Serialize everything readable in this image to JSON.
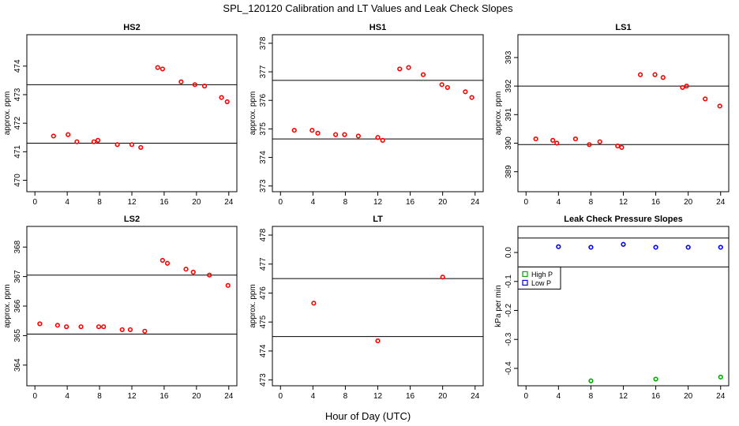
{
  "figure": {
    "title": "SPL_120120  Calibration and LT Values and Leak Check Slopes",
    "xlabel": "Hour of Day (UTC)"
  },
  "colors": {
    "cal": "#ff0000",
    "high": "#00aa00",
    "low": "#0000ff",
    "line": "#000000"
  },
  "chart_data": [
    {
      "type": "scatter",
      "title": "HS2",
      "ylabel": "approx. ppm",
      "xlim": [
        -1,
        25
      ],
      "ylim": [
        469.6,
        475.1
      ],
      "xticks": [
        0,
        4,
        8,
        12,
        16,
        20,
        24
      ],
      "yticks": [
        470,
        471,
        472,
        473,
        474
      ],
      "hlines": [
        471.3,
        473.35
      ],
      "points": [
        {
          "x": 2.3,
          "y": 471.55
        },
        {
          "x": 4.1,
          "y": 471.6
        },
        {
          "x": 5.2,
          "y": 471.35
        },
        {
          "x": 7.3,
          "y": 471.35
        },
        {
          "x": 7.8,
          "y": 471.4
        },
        {
          "x": 10.2,
          "y": 471.25
        },
        {
          "x": 12.0,
          "y": 471.25
        },
        {
          "x": 13.1,
          "y": 471.15
        },
        {
          "x": 15.2,
          "y": 473.95
        },
        {
          "x": 15.8,
          "y": 473.9
        },
        {
          "x": 18.1,
          "y": 473.45
        },
        {
          "x": 19.8,
          "y": 473.35
        },
        {
          "x": 21.0,
          "y": 473.3
        },
        {
          "x": 23.1,
          "y": 472.9
        },
        {
          "x": 23.8,
          "y": 472.75
        }
      ]
    },
    {
      "type": "scatter",
      "title": "HS1",
      "ylabel": "approx. ppm",
      "xlim": [
        -1,
        25
      ],
      "ylim": [
        372.8,
        378.3
      ],
      "xticks": [
        0,
        4,
        8,
        12,
        16,
        20,
        24
      ],
      "yticks": [
        373,
        374,
        375,
        376,
        377,
        378
      ],
      "hlines": [
        374.65,
        376.7
      ],
      "points": [
        {
          "x": 1.7,
          "y": 374.95
        },
        {
          "x": 3.9,
          "y": 374.95
        },
        {
          "x": 4.6,
          "y": 374.85
        },
        {
          "x": 6.8,
          "y": 374.8
        },
        {
          "x": 7.9,
          "y": 374.8
        },
        {
          "x": 9.6,
          "y": 374.75
        },
        {
          "x": 12.0,
          "y": 374.7
        },
        {
          "x": 12.6,
          "y": 374.6
        },
        {
          "x": 14.7,
          "y": 377.1
        },
        {
          "x": 15.8,
          "y": 377.15
        },
        {
          "x": 17.6,
          "y": 376.9
        },
        {
          "x": 19.9,
          "y": 376.55
        },
        {
          "x": 20.6,
          "y": 376.45
        },
        {
          "x": 22.8,
          "y": 376.3
        },
        {
          "x": 23.6,
          "y": 376.1
        }
      ]
    },
    {
      "type": "scatter",
      "title": "LS1",
      "ylabel": "approx. ppm",
      "xlim": [
        -1,
        25
      ],
      "ylim": [
        388.3,
        393.8
      ],
      "xticks": [
        0,
        4,
        8,
        12,
        16,
        20,
        24
      ],
      "yticks": [
        389,
        390,
        391,
        392,
        393
      ],
      "hlines": [
        389.95,
        392.0
      ],
      "points": [
        {
          "x": 1.2,
          "y": 390.15
        },
        {
          "x": 3.3,
          "y": 390.1
        },
        {
          "x": 3.8,
          "y": 390.0
        },
        {
          "x": 6.1,
          "y": 390.15
        },
        {
          "x": 7.8,
          "y": 389.95
        },
        {
          "x": 9.1,
          "y": 390.05
        },
        {
          "x": 11.3,
          "y": 389.9
        },
        {
          "x": 11.8,
          "y": 389.85
        },
        {
          "x": 14.1,
          "y": 392.4
        },
        {
          "x": 15.9,
          "y": 392.4
        },
        {
          "x": 16.9,
          "y": 392.3
        },
        {
          "x": 19.3,
          "y": 391.95
        },
        {
          "x": 19.8,
          "y": 392.0
        },
        {
          "x": 22.1,
          "y": 391.55
        },
        {
          "x": 23.9,
          "y": 391.3
        }
      ]
    },
    {
      "type": "scatter",
      "title": "LS2",
      "ylabel": "approx. ppm",
      "xlim": [
        -1,
        25
      ],
      "ylim": [
        363.3,
        368.7
      ],
      "xticks": [
        0,
        4,
        8,
        12,
        16,
        20,
        24
      ],
      "yticks": [
        364,
        365,
        366,
        367,
        368
      ],
      "hlines": [
        365.05,
        367.05
      ],
      "points": [
        {
          "x": 0.6,
          "y": 365.4
        },
        {
          "x": 2.8,
          "y": 365.35
        },
        {
          "x": 3.9,
          "y": 365.3
        },
        {
          "x": 5.7,
          "y": 365.3
        },
        {
          "x": 7.9,
          "y": 365.3
        },
        {
          "x": 8.5,
          "y": 365.3
        },
        {
          "x": 10.8,
          "y": 365.2
        },
        {
          "x": 11.8,
          "y": 365.2
        },
        {
          "x": 13.6,
          "y": 365.15
        },
        {
          "x": 15.8,
          "y": 367.55
        },
        {
          "x": 16.4,
          "y": 367.45
        },
        {
          "x": 18.7,
          "y": 367.25
        },
        {
          "x": 19.6,
          "y": 367.15
        },
        {
          "x": 21.6,
          "y": 367.05
        },
        {
          "x": 23.9,
          "y": 366.7
        }
      ]
    },
    {
      "type": "scatter",
      "title": "LT",
      "ylabel": "approx. ppm",
      "xlim": [
        -1,
        25
      ],
      "ylim": [
        472.8,
        478.3
      ],
      "xticks": [
        0,
        4,
        8,
        12,
        16,
        20,
        24
      ],
      "yticks": [
        473,
        474,
        475,
        476,
        477,
        478
      ],
      "hlines": [
        474.5,
        476.5
      ],
      "points": [
        {
          "x": 4.1,
          "y": 475.65
        },
        {
          "x": 12.0,
          "y": 474.35
        },
        {
          "x": 20.0,
          "y": 476.55
        }
      ]
    },
    {
      "type": "scatter",
      "title": "Leak Check Pressure Slopes",
      "ylabel": "kPa per min",
      "xlim": [
        -1,
        25
      ],
      "ylim": [
        -0.46,
        0.09
      ],
      "xticks": [
        0,
        4,
        8,
        12,
        16,
        20,
        24
      ],
      "yticks": [
        -0.4,
        -0.3,
        -0.2,
        -0.1,
        0.0
      ],
      "ytick_labels": [
        "-0.4",
        "-0.3",
        "-0.2",
        "-0.1",
        "0.0"
      ],
      "hlines": [
        0.05,
        -0.05
      ],
      "legend": {
        "position": "left",
        "entries": [
          "High P",
          "Low P"
        ]
      },
      "series": [
        {
          "name": "High P",
          "x": [
            8,
            16,
            24
          ],
          "y": [
            -0.443,
            -0.437,
            -0.43
          ]
        },
        {
          "name": "Low P",
          "x": [
            4,
            8,
            12,
            16,
            20,
            24
          ],
          "y": [
            0.02,
            0.018,
            0.028,
            0.018,
            0.018,
            0.018
          ]
        }
      ]
    }
  ]
}
